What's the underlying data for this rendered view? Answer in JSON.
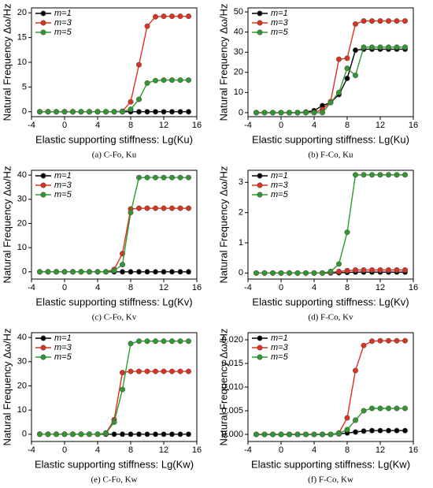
{
  "chart_data": [
    {
      "type": "line",
      "caption": "(a) C-Fo, Ku",
      "xlabel": "Elastic supporting stiffness: Lg(Ku)",
      "ylabel": "Natural Frequency Δω/Hz",
      "x": [
        -3,
        -2,
        -1,
        0,
        1,
        2,
        3,
        4,
        5,
        6,
        7,
        8,
        9,
        10,
        11,
        12,
        13,
        14,
        15
      ],
      "xlim": [
        -4,
        16
      ],
      "xticks": [
        -4,
        0,
        4,
        8,
        12,
        16
      ],
      "ylim": [
        -1,
        21
      ],
      "yticks": [
        0,
        5,
        10,
        15,
        20
      ],
      "legend": "upper left",
      "series": [
        {
          "name": "m=1",
          "color": "#000000",
          "values": [
            0,
            0,
            0,
            0,
            0,
            0,
            0,
            0,
            0,
            0,
            0,
            0,
            0,
            0,
            0,
            0,
            0,
            0,
            0
          ]
        },
        {
          "name": "m=3",
          "color": "#e0301e",
          "values": [
            0,
            0,
            0,
            0,
            0,
            0,
            0,
            0,
            0,
            0,
            0.1,
            2,
            9.5,
            17.3,
            19.2,
            19.3,
            19.3,
            19.3,
            19.3
          ]
        },
        {
          "name": "m=5",
          "color": "#2e9a2e",
          "values": [
            0,
            0,
            0,
            0,
            0,
            0,
            0,
            0,
            0,
            0,
            0,
            0.5,
            2.5,
            5.8,
            6.3,
            6.4,
            6.4,
            6.4,
            6.4
          ]
        }
      ]
    },
    {
      "type": "line",
      "caption": "(b) F-Co, Ku",
      "xlabel": "Elastic supporting stiffness: Lg(Ku)",
      "ylabel": "Natural Frequency Δω/Hz",
      "x": [
        -3,
        -2,
        -1,
        0,
        1,
        2,
        3,
        4,
        5,
        6,
        7,
        8,
        9,
        10,
        11,
        12,
        13,
        14,
        15
      ],
      "xlim": [
        -4,
        16
      ],
      "xticks": [
        -4,
        0,
        4,
        8,
        12,
        16
      ],
      "ylim": [
        -2,
        52
      ],
      "yticks": [
        0,
        10,
        20,
        30,
        40,
        50
      ],
      "legend": "upper left",
      "series": [
        {
          "name": "m=1",
          "color": "#000000",
          "values": [
            0,
            0,
            0,
            0,
            0,
            0,
            0.3,
            1,
            3.5,
            5,
            9,
            17,
            31,
            31.5,
            31.5,
            31.5,
            31.5,
            31.5,
            31.5
          ]
        },
        {
          "name": "m=3",
          "color": "#e0301e",
          "values": [
            0,
            0,
            0,
            0,
            0,
            0,
            0,
            0,
            1.5,
            5.5,
            26.5,
            27,
            44,
            45.5,
            45.5,
            45.5,
            45.5,
            45.5,
            45.5
          ]
        },
        {
          "name": "m=5",
          "color": "#2e9a2e",
          "values": [
            0,
            0,
            0,
            0,
            0,
            0,
            0,
            0,
            0,
            5,
            10,
            22,
            18.5,
            32.5,
            32.5,
            32.5,
            32.5,
            32.5,
            32.5
          ]
        }
      ]
    },
    {
      "type": "line",
      "caption": "(c) C-Fo, Kv",
      "xlabel": "Elastic supporting stiffness: Lg(Kv)",
      "ylabel": "Natural Frequency Δω/Hz",
      "x": [
        -3,
        -2,
        -1,
        0,
        1,
        2,
        3,
        4,
        5,
        6,
        7,
        8,
        9,
        10,
        11,
        12,
        13,
        14,
        15
      ],
      "xlim": [
        -4,
        16
      ],
      "xticks": [
        -4,
        0,
        4,
        8,
        12,
        16
      ],
      "ylim": [
        -3,
        42
      ],
      "yticks": [
        0,
        10,
        20,
        30,
        40
      ],
      "legend": "upper left",
      "series": [
        {
          "name": "m=1",
          "color": "#000000",
          "values": [
            0,
            0,
            0,
            0,
            0,
            0,
            0,
            0,
            0,
            0,
            0,
            0,
            0,
            0,
            0,
            0,
            0,
            0,
            0
          ]
        },
        {
          "name": "m=3",
          "color": "#e0301e",
          "values": [
            0,
            0,
            0,
            0,
            0,
            0,
            0,
            0,
            0,
            1,
            7.5,
            26,
            26.3,
            26.3,
            26.3,
            26.3,
            26.3,
            26.3,
            26.3
          ]
        },
        {
          "name": "m=5",
          "color": "#2e9a2e",
          "values": [
            0,
            0,
            0,
            0,
            0,
            0,
            0,
            0,
            0,
            0.5,
            3,
            24.5,
            39,
            39,
            39,
            39,
            39,
            39,
            39
          ]
        }
      ]
    },
    {
      "type": "line",
      "caption": "(d) F-Co, Kv",
      "xlabel": "Elastic supporting stiffness: Lg(Kv)",
      "ylabel": "Natural Frequency Δω/Hz",
      "x": [
        -3,
        -2,
        -1,
        0,
        1,
        2,
        3,
        4,
        5,
        6,
        7,
        8,
        9,
        10,
        11,
        12,
        13,
        14,
        15
      ],
      "xlim": [
        -4,
        16
      ],
      "xticks": [
        -4,
        0,
        4,
        8,
        12,
        16
      ],
      "ylim": [
        -0.2,
        3.4
      ],
      "yticks": [
        0,
        1,
        2,
        3
      ],
      "legend": "upper left",
      "series": [
        {
          "name": "m=1",
          "color": "#000000",
          "values": [
            0,
            0,
            0,
            0,
            0,
            0,
            0,
            0,
            0,
            0,
            0.01,
            0.02,
            0.03,
            0.03,
            0.03,
            0.03,
            0.03,
            0.03,
            0.03
          ]
        },
        {
          "name": "m=3",
          "color": "#e0301e",
          "values": [
            0,
            0,
            0,
            0,
            0,
            0,
            0,
            0,
            0,
            0.02,
            0.05,
            0.08,
            0.1,
            0.1,
            0.1,
            0.1,
            0.1,
            0.1,
            0.1
          ]
        },
        {
          "name": "m=5",
          "color": "#2e9a2e",
          "values": [
            0,
            0,
            0,
            0,
            0,
            0,
            0,
            0,
            0,
            0.05,
            0.3,
            1.35,
            3.25,
            3.25,
            3.25,
            3.25,
            3.25,
            3.25,
            3.25
          ]
        }
      ]
    },
    {
      "type": "line",
      "caption": "(e) C-Fo, Kw",
      "xlabel": "Elastic supporting stiffness: Lg(Kw)",
      "ylabel": "Natural Frequency Δω/Hz",
      "x": [
        -3,
        -2,
        -1,
        0,
        1,
        2,
        3,
        4,
        5,
        6,
        7,
        8,
        9,
        10,
        11,
        12,
        13,
        14,
        15
      ],
      "xlim": [
        -4,
        16
      ],
      "xticks": [
        -4,
        0,
        4,
        8,
        12,
        16
      ],
      "ylim": [
        -3,
        42
      ],
      "yticks": [
        0,
        10,
        20,
        30,
        40
      ],
      "legend": "upper left",
      "series": [
        {
          "name": "m=1",
          "color": "#000000",
          "values": [
            0,
            0,
            0,
            0,
            0,
            0,
            0,
            0,
            0,
            0,
            0,
            0,
            0,
            0,
            0,
            0,
            0,
            0,
            0
          ]
        },
        {
          "name": "m=3",
          "color": "#e0301e",
          "values": [
            0,
            0,
            0,
            0,
            0,
            0,
            0,
            0,
            0.5,
            6,
            25.5,
            26,
            26,
            26,
            26,
            26,
            26,
            26,
            26
          ]
        },
        {
          "name": "m=5",
          "color": "#2e9a2e",
          "values": [
            0,
            0,
            0,
            0,
            0,
            0,
            0,
            0,
            0.3,
            5,
            18.5,
            37.5,
            38.5,
            38.5,
            38.5,
            38.5,
            38.5,
            38.5,
            38.5
          ]
        }
      ]
    },
    {
      "type": "line",
      "caption": "(f) F-Co, Kw",
      "xlabel": "Elastic supporting stiffness: Lg(Kw)",
      "ylabel": "Natural Frequency Δω/Hz",
      "x": [
        -3,
        -2,
        -1,
        0,
        1,
        2,
        3,
        4,
        5,
        6,
        7,
        8,
        9,
        10,
        11,
        12,
        13,
        14,
        15
      ],
      "xlim": [
        -4,
        16
      ],
      "xticks": [
        -4,
        0,
        4,
        8,
        12,
        16
      ],
      "ylim": [
        -0.0015,
        0.0215
      ],
      "yticks": [
        {
          "value": 0,
          "label": "0.000"
        },
        {
          "value": 0.005,
          "label": "0.005"
        },
        {
          "value": 0.01,
          "label": "0.010"
        },
        {
          "value": 0.015,
          "label": "0.015"
        },
        {
          "value": 0.02,
          "label": "0.020"
        }
      ],
      "legend": "upper left",
      "series": [
        {
          "name": "m=1",
          "color": "#000000",
          "values": [
            0,
            0,
            0,
            0,
            0,
            0,
            0,
            0,
            0,
            0,
            0.0001,
            0.0003,
            0.0005,
            0.0007,
            0.0008,
            0.0008,
            0.0008,
            0.0008,
            0.0008
          ]
        },
        {
          "name": "m=3",
          "color": "#e0301e",
          "values": [
            0,
            0,
            0,
            0,
            0,
            0,
            0,
            0,
            0,
            0,
            0.0003,
            0.0035,
            0.0135,
            0.0188,
            0.0197,
            0.0198,
            0.0198,
            0.0198,
            0.0198
          ]
        },
        {
          "name": "m=5",
          "color": "#2e9a2e",
          "values": [
            0,
            0,
            0,
            0,
            0,
            0,
            0,
            0,
            0,
            0,
            0.0002,
            0.001,
            0.003,
            0.005,
            0.0055,
            0.0055,
            0.0055,
            0.0055,
            0.0055
          ]
        }
      ]
    }
  ]
}
